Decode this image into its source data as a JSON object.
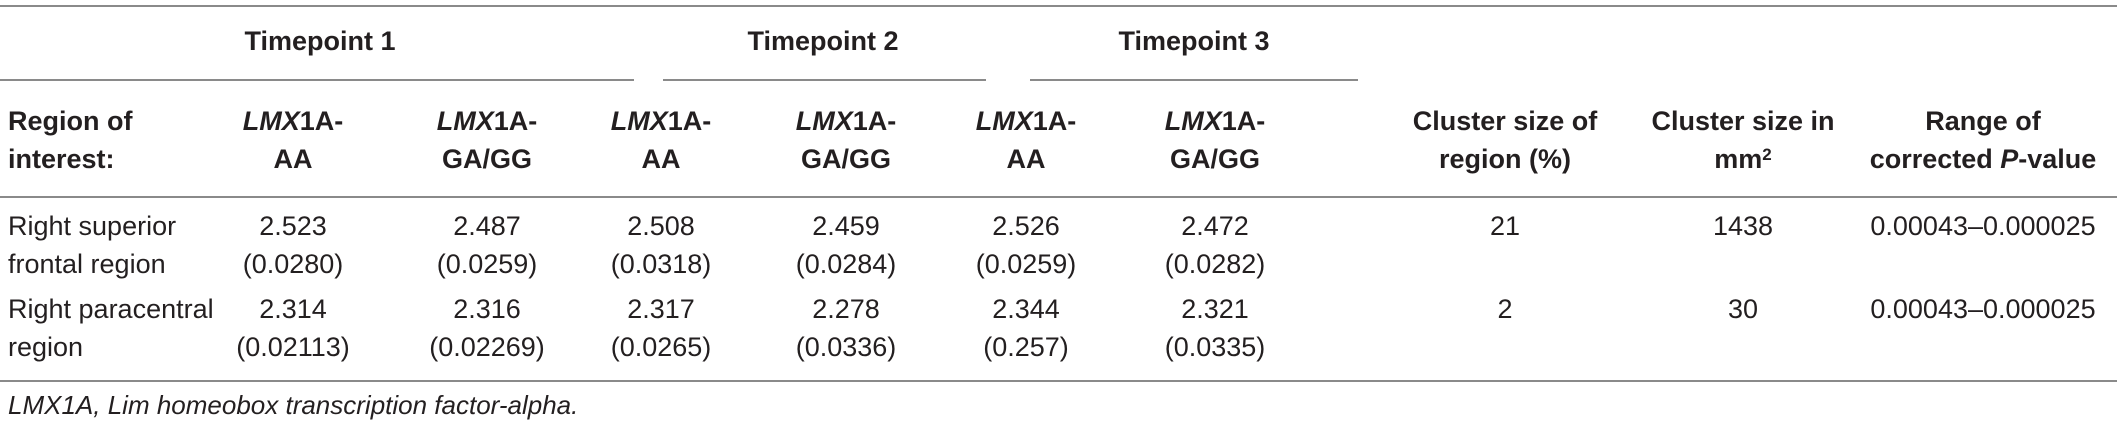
{
  "group_headers": [
    {
      "label": "Timepoint 1"
    },
    {
      "label": "Timepoint 2"
    },
    {
      "label": "Timepoint 3"
    }
  ],
  "column_headers": {
    "region": [
      "Region of",
      "interest:"
    ],
    "genotype_aa": {
      "gene": "LMX",
      "rest_line1": "1A-",
      "line2": "AA"
    },
    "genotype_gg": {
      "gene": "LMX",
      "rest_line1": "1A-",
      "line2": "GA/GG"
    },
    "cluster_pct": [
      "Cluster size of",
      "region (%)"
    ],
    "cluster_mm": {
      "line1": "Cluster size in",
      "line2_base": "mm",
      "line2_sup": "2"
    },
    "pvalue": {
      "line1": "Range of",
      "line2_prefix": "corrected ",
      "line2_italic": "P",
      "line2_suffix": "-value"
    }
  },
  "rows": [
    {
      "region": [
        "Right superior",
        "frontal region"
      ],
      "values": [
        [
          "2.523",
          "(0.0280)"
        ],
        [
          "2.487",
          "(0.0259)"
        ],
        [
          "2.508",
          "(0.0318)"
        ],
        [
          "2.459",
          "(0.0284)"
        ],
        [
          "2.526",
          "(0.0259)"
        ],
        [
          "2.472",
          "(0.0282)"
        ]
      ],
      "cluster_pct": "21",
      "cluster_mm": "1438",
      "pvalue_range": "0.00043–0.000025"
    },
    {
      "region": [
        "Right paracentral",
        "region"
      ],
      "values": [
        [
          "2.314",
          "(0.02113)"
        ],
        [
          "2.316",
          "(0.02269)"
        ],
        [
          "2.317",
          "(0.0265)"
        ],
        [
          "2.278",
          "(0.0336)"
        ],
        [
          "2.344",
          "(0.257)"
        ],
        [
          "2.321",
          "(0.0335)"
        ]
      ],
      "cluster_pct": "2",
      "cluster_mm": "30",
      "pvalue_range": "0.00043–0.000025"
    }
  ],
  "footnote": "LMX1A, Lim homeobox transcription factor-alpha."
}
